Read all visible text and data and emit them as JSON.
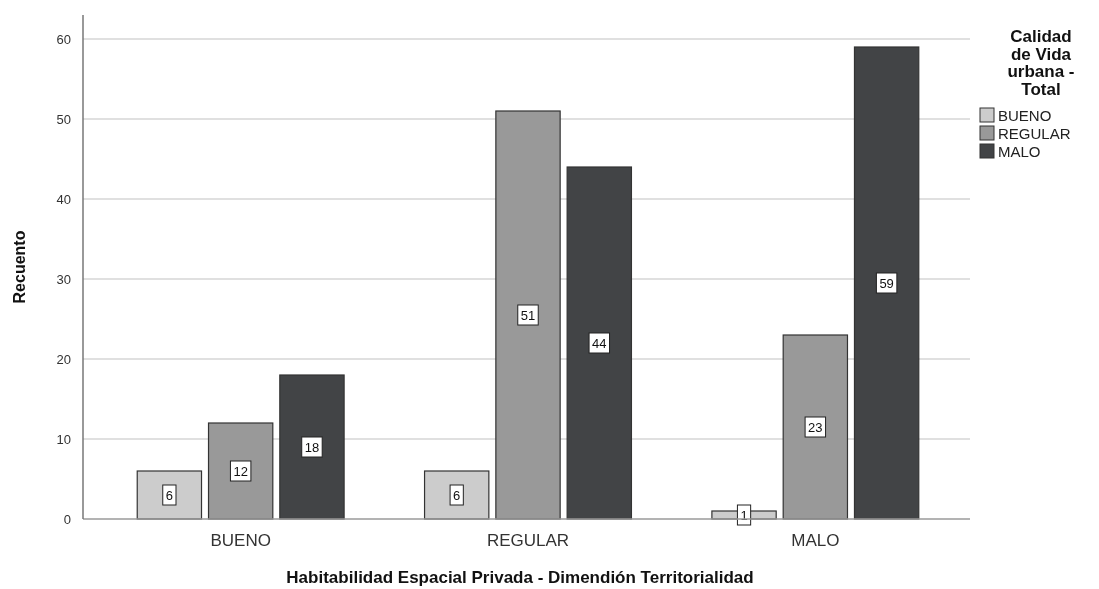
{
  "chart_data": {
    "type": "bar",
    "xlabel": "Habitabilidad Espacial Privada - Dimendión Territorialidad",
    "ylabel": "Recuento",
    "legend_title": "Calidad de Vida urbana - Total",
    "categories": [
      "BUENO",
      "REGULAR",
      "MALO"
    ],
    "series": [
      {
        "name": "BUENO",
        "color": "#cccccc",
        "values": [
          6,
          6,
          1
        ]
      },
      {
        "name": "REGULAR",
        "color": "#999999",
        "values": [
          12,
          51,
          23
        ]
      },
      {
        "name": "MALO",
        "color": "#424446",
        "values": [
          18,
          44,
          59
        ]
      }
    ],
    "ylim": [
      0,
      63
    ],
    "yticks": [
      0,
      10,
      20,
      30,
      40,
      50,
      60
    ],
    "grid": "y",
    "legend": "top right",
    "data_labels": true
  }
}
